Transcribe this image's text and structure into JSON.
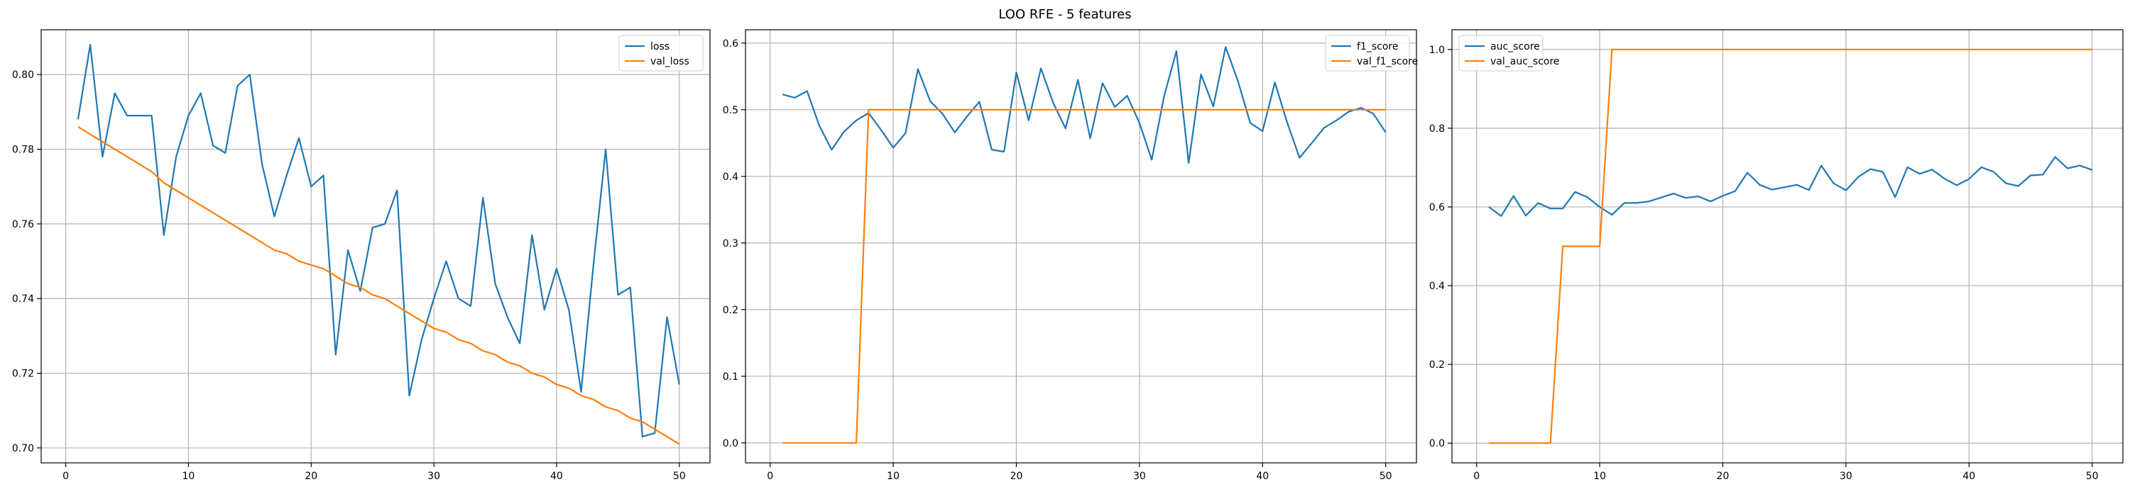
{
  "suptitle": "LOO RFE - 5 features",
  "colors": {
    "series_1": "#1f77b4",
    "series_2": "#ff7f0e",
    "grid": "#b0b0b0",
    "axis": "#000000"
  },
  "chart_data": [
    {
      "type": "line",
      "grid": true,
      "legend_position": "top-right",
      "xlim": [
        -2,
        52.5
      ],
      "ylim": [
        0.696,
        0.812
      ],
      "xticks": [
        0,
        10,
        20,
        30,
        40,
        50
      ],
      "yticks": [
        0.7,
        0.72,
        0.74,
        0.76,
        0.78,
        0.8
      ],
      "ytick_decimals": 2,
      "x": [
        1,
        2,
        3,
        4,
        5,
        6,
        7,
        8,
        9,
        10,
        11,
        12,
        13,
        14,
        15,
        16,
        17,
        18,
        19,
        20,
        21,
        22,
        23,
        24,
        25,
        26,
        27,
        28,
        29,
        30,
        31,
        32,
        33,
        34,
        35,
        36,
        37,
        38,
        39,
        40,
        41,
        42,
        43,
        44,
        45,
        46,
        47,
        48,
        49,
        50
      ],
      "series": [
        {
          "name": "loss",
          "color": "#1f77b4",
          "values": [
            0.788,
            0.808,
            0.778,
            0.795,
            0.789,
            0.789,
            0.789,
            0.757,
            0.778,
            0.789,
            0.795,
            0.781,
            0.779,
            0.797,
            0.8,
            0.776,
            0.762,
            0.773,
            0.783,
            0.77,
            0.773,
            0.725,
            0.753,
            0.742,
            0.759,
            0.76,
            0.769,
            0.714,
            0.729,
            0.74,
            0.75,
            0.74,
            0.738,
            0.767,
            0.744,
            0.735,
            0.728,
            0.757,
            0.737,
            0.748,
            0.737,
            0.715,
            0.749,
            0.78,
            0.741,
            0.743,
            0.703,
            0.704,
            0.735,
            0.717
          ]
        },
        {
          "name": "val_loss",
          "color": "#ff7f0e",
          "values": [
            0.786,
            0.784,
            0.782,
            0.78,
            0.778,
            0.776,
            0.774,
            0.771,
            0.769,
            0.767,
            0.765,
            0.763,
            0.761,
            0.759,
            0.757,
            0.755,
            0.753,
            0.752,
            0.75,
            0.749,
            0.748,
            0.746,
            0.744,
            0.743,
            0.741,
            0.74,
            0.738,
            0.736,
            0.734,
            0.732,
            0.731,
            0.729,
            0.728,
            0.726,
            0.725,
            0.723,
            0.722,
            0.72,
            0.719,
            0.717,
            0.716,
            0.714,
            0.713,
            0.711,
            0.71,
            0.708,
            0.707,
            0.705,
            0.703,
            0.701
          ]
        }
      ]
    },
    {
      "type": "line",
      "grid": true,
      "legend_position": "top-right",
      "xlim": [
        -2,
        52.5
      ],
      "ylim": [
        -0.03,
        0.62
      ],
      "xticks": [
        0,
        10,
        20,
        30,
        40,
        50
      ],
      "yticks": [
        0.0,
        0.1,
        0.2,
        0.3,
        0.4,
        0.5,
        0.6
      ],
      "ytick_decimals": 1,
      "x": [
        1,
        2,
        3,
        4,
        5,
        6,
        7,
        8,
        9,
        10,
        11,
        12,
        13,
        14,
        15,
        16,
        17,
        18,
        19,
        20,
        21,
        22,
        23,
        24,
        25,
        26,
        27,
        28,
        29,
        30,
        31,
        32,
        33,
        34,
        35,
        36,
        37,
        38,
        39,
        40,
        41,
        42,
        43,
        44,
        45,
        46,
        47,
        48,
        49,
        50
      ],
      "series": [
        {
          "name": "f1_score",
          "color": "#1f77b4",
          "values": [
            0.523,
            0.518,
            0.528,
            0.476,
            0.44,
            0.467,
            0.484,
            0.495,
            0.47,
            0.443,
            0.465,
            0.561,
            0.513,
            0.494,
            0.466,
            0.49,
            0.512,
            0.44,
            0.437,
            0.556,
            0.484,
            0.562,
            0.51,
            0.472,
            0.545,
            0.457,
            0.54,
            0.504,
            0.521,
            0.48,
            0.425,
            0.52,
            0.588,
            0.42,
            0.553,
            0.505,
            0.594,
            0.543,
            0.48,
            0.468,
            0.541,
            0.481,
            0.428,
            0.45,
            0.473,
            0.484,
            0.497,
            0.503,
            0.494,
            0.466
          ]
        },
        {
          "name": "val_f1_score",
          "color": "#ff7f0e",
          "values": [
            0,
            0,
            0,
            0,
            0,
            0,
            0,
            0.5,
            0.5,
            0.5,
            0.5,
            0.5,
            0.5,
            0.5,
            0.5,
            0.5,
            0.5,
            0.5,
            0.5,
            0.5,
            0.5,
            0.5,
            0.5,
            0.5,
            0.5,
            0.5,
            0.5,
            0.5,
            0.5,
            0.5,
            0.5,
            0.5,
            0.5,
            0.5,
            0.5,
            0.5,
            0.5,
            0.5,
            0.5,
            0.5,
            0.5,
            0.5,
            0.5,
            0.5,
            0.5,
            0.5,
            0.5,
            0.5,
            0.5,
            0.5
          ]
        }
      ]
    },
    {
      "type": "line",
      "grid": true,
      "legend_position": "top-left",
      "xlim": [
        -2,
        52.5
      ],
      "ylim": [
        -0.05,
        1.05
      ],
      "xticks": [
        0,
        10,
        20,
        30,
        40,
        50
      ],
      "yticks": [
        0.0,
        0.2,
        0.4,
        0.6,
        0.8,
        1.0
      ],
      "ytick_decimals": 1,
      "x": [
        1,
        2,
        3,
        4,
        5,
        6,
        7,
        8,
        9,
        10,
        11,
        12,
        13,
        14,
        15,
        16,
        17,
        18,
        19,
        20,
        21,
        22,
        23,
        24,
        25,
        26,
        27,
        28,
        29,
        30,
        31,
        32,
        33,
        34,
        35,
        36,
        37,
        38,
        39,
        40,
        41,
        42,
        43,
        44,
        45,
        46,
        47,
        48,
        49,
        50
      ],
      "series": [
        {
          "name": "auc_score",
          "color": "#1f77b4",
          "values": [
            0.6,
            0.577,
            0.628,
            0.578,
            0.61,
            0.596,
            0.596,
            0.638,
            0.625,
            0.6,
            0.58,
            0.61,
            0.61,
            0.614,
            0.624,
            0.634,
            0.623,
            0.627,
            0.614,
            0.628,
            0.64,
            0.687,
            0.656,
            0.644,
            0.65,
            0.656,
            0.643,
            0.705,
            0.66,
            0.642,
            0.676,
            0.696,
            0.689,
            0.625,
            0.701,
            0.684,
            0.695,
            0.672,
            0.655,
            0.671,
            0.701,
            0.689,
            0.66,
            0.653,
            0.68,
            0.682,
            0.727,
            0.698,
            0.705,
            0.694
          ]
        },
        {
          "name": "val_auc_score",
          "color": "#ff7f0e",
          "values": [
            0,
            0,
            0,
            0,
            0,
            0,
            0.5,
            0.5,
            0.5,
            0.5,
            1,
            1,
            1,
            1,
            1,
            1,
            1,
            1,
            1,
            1,
            1,
            1,
            1,
            1,
            1,
            1,
            1,
            1,
            1,
            1,
            1,
            1,
            1,
            1,
            1,
            1,
            1,
            1,
            1,
            1,
            1,
            1,
            1,
            1,
            1,
            1,
            1,
            1,
            1,
            1
          ]
        }
      ]
    }
  ]
}
